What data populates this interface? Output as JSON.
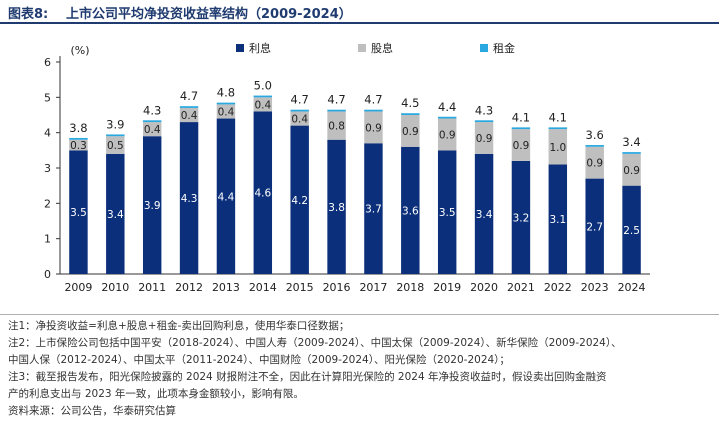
{
  "figure": {
    "label": "图表8:",
    "title": "上市公司平均净投资收益率结构（2009-2024）"
  },
  "chart_data": {
    "type": "bar",
    "stacked": true,
    "ylabel": "(%)",
    "ylim": [
      0,
      6
    ],
    "yticks": [
      0,
      1,
      2,
      3,
      4,
      5,
      6
    ],
    "grid": false,
    "legend_position": "top",
    "categories": [
      "2009",
      "2010",
      "2011",
      "2012",
      "2013",
      "2014",
      "2015",
      "2016",
      "2017",
      "2018",
      "2019",
      "2020",
      "2021",
      "2022",
      "2023",
      "2024"
    ],
    "series": [
      {
        "name": "利息",
        "color": "#0b2f7a",
        "values": [
          3.5,
          3.4,
          3.9,
          4.3,
          4.4,
          4.6,
          4.2,
          3.8,
          3.7,
          3.6,
          3.5,
          3.4,
          3.2,
          3.1,
          2.7,
          2.5
        ]
      },
      {
        "name": "股息",
        "color": "#bfbfbf",
        "values": [
          0.3,
          0.5,
          0.4,
          0.4,
          0.4,
          0.4,
          0.4,
          0.8,
          0.9,
          0.9,
          0.9,
          0.9,
          0.9,
          1.0,
          0.9,
          0.9
        ]
      },
      {
        "name": "租金",
        "color": "#2aa9e0",
        "values": [
          0.05,
          0.05,
          0.05,
          0.05,
          0.05,
          0.05,
          0.05,
          0.05,
          0.05,
          0.05,
          0.05,
          0.05,
          0.05,
          0.05,
          0.05,
          0.05
        ]
      }
    ],
    "totals": [
      3.8,
      3.9,
      4.3,
      4.7,
      4.8,
      5.0,
      4.7,
      4.7,
      4.7,
      4.5,
      4.4,
      4.3,
      4.1,
      4.1,
      3.6,
      3.4
    ]
  },
  "notes": [
    "注1：净投资收益=利息+股息+租金-卖出回购利息，使用华泰口径数据；",
    "注2：上市保险公司包括中国平安（2018-2024）、中国人寿（2009-2024）、中国太保（2009-2024）、新华保险（2009-2024）、",
    "中国人保（2012-2024）、中国太平（2011-2024）、中国财险（2009-2024）、阳光保险（2020-2024）；",
    "注3：截至报告发布，阳光保险披露的 2024 财报附注不全，因此在计算阳光保险的 2024 年净投资收益时，假设卖出回购金融资",
    "产的利息支出与 2023 年一致，此项本身金额较小，影响有限。",
    "资料来源：公司公告，华泰研究估算"
  ]
}
